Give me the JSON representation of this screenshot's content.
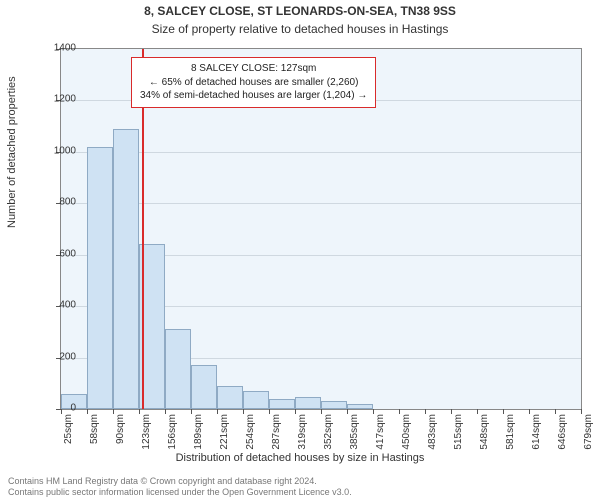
{
  "title": "8, SALCEY CLOSE, ST LEONARDS-ON-SEA, TN38 9SS",
  "subtitle": "Size of property relative to detached houses in Hastings",
  "ylabel": "Number of detached properties",
  "xlabel": "Distribution of detached houses by size in Hastings",
  "chart": {
    "type": "histogram",
    "background_color": "#eef5fb",
    "grid_color": "#cfd8e0",
    "bar_fill": "#cfe2f3",
    "bar_border": "#8faac4",
    "marker_color": "#d92b2b",
    "title_fontsize": 12,
    "label_fontsize": 11,
    "tick_fontsize": 10,
    "ylim": [
      0,
      1400
    ],
    "ytick_step": 200,
    "xticks": [
      "25sqm",
      "58sqm",
      "90sqm",
      "123sqm",
      "156sqm",
      "189sqm",
      "221sqm",
      "254sqm",
      "287sqm",
      "319sqm",
      "352sqm",
      "385sqm",
      "417sqm",
      "450sqm",
      "483sqm",
      "515sqm",
      "548sqm",
      "581sqm",
      "614sqm",
      "646sqm",
      "679sqm"
    ],
    "values": [
      60,
      1020,
      1090,
      640,
      310,
      170,
      90,
      70,
      40,
      45,
      30,
      20,
      0,
      0,
      0,
      0,
      0,
      0,
      0,
      0
    ],
    "marker_value": 127,
    "x_min": 25,
    "x_max": 679,
    "bar_width_ratio": 1.0
  },
  "annotation": {
    "line1": "8 SALCEY CLOSE: 127sqm",
    "line2": "← 65% of detached houses are smaller (2,260)",
    "line3": "34% of semi-detached houses are larger (1,204) →"
  },
  "footer": {
    "line1": "Contains HM Land Registry data © Crown copyright and database right 2024.",
    "line2": "Contains public sector information licensed under the Open Government Licence v3.0."
  }
}
